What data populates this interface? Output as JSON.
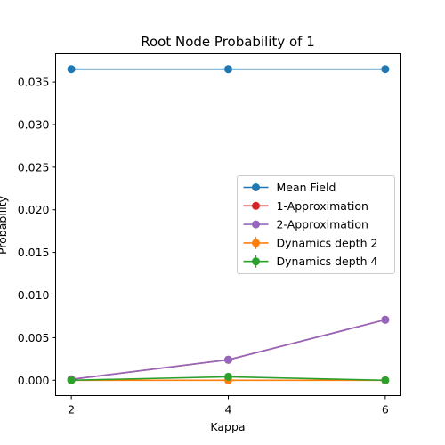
{
  "chart_data": {
    "type": "line",
    "title": "Root Node Probability of 1",
    "xlabel": "Kappa",
    "ylabel": "Probability",
    "x": [
      2,
      4,
      6
    ],
    "xticks": [
      2,
      4,
      6
    ],
    "xtick_labels": [
      "2",
      "4",
      "6"
    ],
    "xlim": [
      1.8,
      6.2
    ],
    "yticks": [
      0.0,
      0.005,
      0.01,
      0.015,
      0.02,
      0.025,
      0.03,
      0.035
    ],
    "ytick_labels": [
      "0.000",
      "0.005",
      "0.010",
      "0.015",
      "0.020",
      "0.025",
      "0.030",
      "0.035"
    ],
    "ylim": [
      -0.0018,
      0.0383
    ],
    "grid": false,
    "legend_position": "center-right",
    "series": [
      {
        "name": "Mean Field",
        "color": "#1f77b4",
        "marker": "circle",
        "values": [
          0.0365,
          0.0365,
          0.0365
        ]
      },
      {
        "name": "1-Approximation",
        "color": "#d62728",
        "marker": "circle",
        "values": [
          0.0001,
          0.0024,
          0.0071
        ]
      },
      {
        "name": "2-Approximation",
        "color": "#9467bd",
        "marker": "circle",
        "values": [
          0.0001,
          0.0024,
          0.0071
        ]
      },
      {
        "name": "Dynamics depth 2",
        "color": "#ff7f0e",
        "marker": "circle-errorbar",
        "values": [
          0.0,
          0.0,
          0.0
        ]
      },
      {
        "name": "Dynamics depth 4",
        "color": "#2ca02c",
        "marker": "circle-errorbar",
        "values": [
          0.0,
          0.0004,
          0.0
        ]
      }
    ]
  }
}
